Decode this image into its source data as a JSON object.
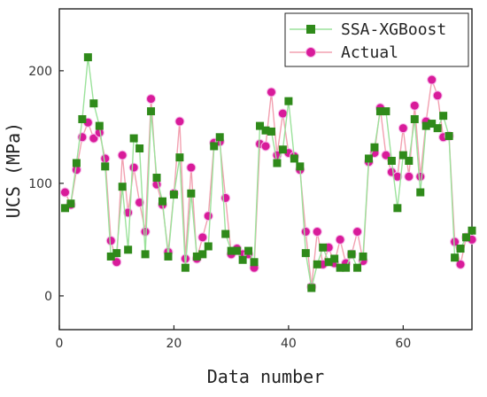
{
  "chart_data": {
    "type": "line",
    "xlabel": "Data number",
    "ylabel": "UCS (MPa)",
    "xlim": [
      0,
      72
    ],
    "ylim": [
      -30,
      255
    ],
    "x_ticks": [
      0,
      20,
      40,
      60
    ],
    "y_ticks": [
      0,
      100,
      200
    ],
    "grid": false,
    "legend_position": "top-right",
    "series": [
      {
        "name": "SSA-XGBoost",
        "color": "#2f8a1a",
        "line_color": "#9be29b",
        "marker": "square",
        "x": [
          1,
          2,
          3,
          4,
          5,
          6,
          7,
          8,
          9,
          10,
          11,
          12,
          13,
          14,
          15,
          16,
          17,
          18,
          19,
          20,
          21,
          22,
          23,
          24,
          25,
          26,
          27,
          28,
          29,
          30,
          31,
          32,
          33,
          34,
          35,
          36,
          37,
          38,
          39,
          40,
          41,
          42,
          43,
          44,
          45,
          46,
          47,
          48,
          49,
          50,
          51,
          52,
          53,
          54,
          55,
          56,
          57,
          58,
          59,
          60,
          61,
          62,
          63,
          64,
          65,
          66,
          67,
          68,
          69,
          70,
          71,
          72
        ],
        "values": [
          78,
          82,
          118,
          157,
          212,
          171,
          151,
          115,
          35,
          38,
          97,
          41,
          140,
          131,
          37,
          164,
          105,
          84,
          35,
          90,
          123,
          25,
          91,
          35,
          37,
          44,
          133,
          141,
          55,
          40,
          40,
          32,
          40,
          30,
          151,
          147,
          146,
          118,
          130,
          173,
          122,
          115,
          38,
          7,
          28,
          43,
          30,
          33,
          25,
          25,
          37,
          25,
          35,
          122,
          132,
          164,
          164,
          120,
          78,
          125,
          120,
          157,
          92,
          151,
          153,
          149,
          160,
          142,
          34,
          42,
          52,
          58
        ]
      },
      {
        "name": "Actual",
        "color": "#d81b9a",
        "line_color": "#f2a0b0",
        "marker": "circle",
        "x": [
          1,
          2,
          3,
          4,
          5,
          6,
          7,
          8,
          9,
          10,
          11,
          12,
          13,
          14,
          15,
          16,
          17,
          18,
          19,
          20,
          21,
          22,
          23,
          24,
          25,
          26,
          27,
          28,
          29,
          30,
          31,
          32,
          33,
          34,
          35,
          36,
          37,
          38,
          39,
          40,
          41,
          42,
          43,
          44,
          45,
          46,
          47,
          48,
          49,
          50,
          51,
          52,
          53,
          54,
          55,
          56,
          57,
          58,
          59,
          60,
          61,
          62,
          63,
          64,
          65,
          66,
          67,
          68,
          69,
          70,
          71,
          72
        ],
        "values": [
          92,
          81,
          112,
          141,
          154,
          140,
          145,
          122,
          49,
          30,
          125,
          74,
          114,
          83,
          57,
          175,
          99,
          81,
          39,
          91,
          155,
          33,
          114,
          33,
          52,
          71,
          136,
          137,
          87,
          37,
          42,
          37,
          37,
          25,
          135,
          133,
          181,
          125,
          162,
          127,
          124,
          112,
          57,
          8,
          57,
          28,
          43,
          29,
          50,
          29,
          37,
          57,
          31,
          119,
          127,
          167,
          125,
          110,
          106,
          149,
          106,
          169,
          106,
          155,
          192,
          178,
          141,
          142,
          48,
          28,
          52,
          50
        ]
      }
    ]
  }
}
